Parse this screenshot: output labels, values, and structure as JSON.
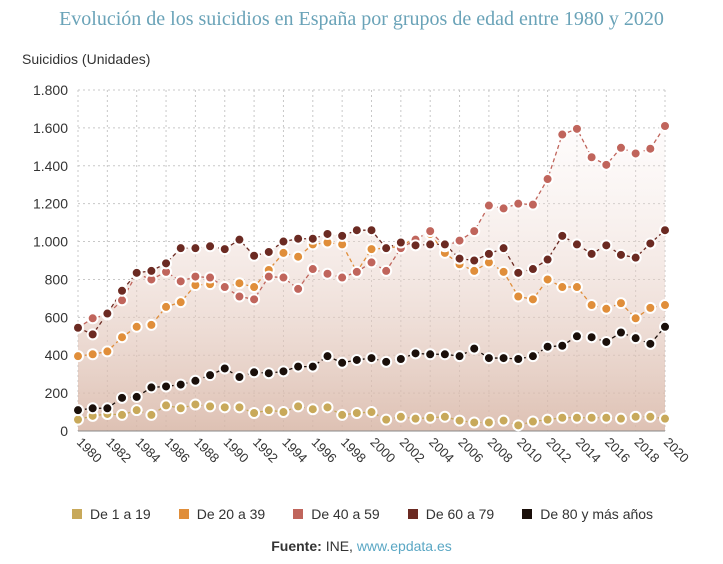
{
  "title": "Evolución de los suicidios en España por grupos de edad entre 1980 y 2020",
  "source": {
    "label": "Fuente:",
    "text": "INE,",
    "link": "www.epdata.es"
  },
  "chart_data": {
    "type": "line",
    "title": "Evolución de los suicidios en España por grupos de edad entre 1980 y 2020",
    "ylabel": "Suicidios (Unidades)",
    "xlabel": "",
    "ylim": [
      0,
      1800
    ],
    "yticks": [
      0,
      200,
      400,
      600,
      800,
      1000,
      1200,
      1400,
      1600,
      1800
    ],
    "ytick_labels": [
      "0",
      "200",
      "400",
      "600",
      "800",
      "1.000",
      "1.200",
      "1.400",
      "1.600",
      "1.800"
    ],
    "xticks": [
      1980,
      1982,
      1984,
      1986,
      1988,
      1990,
      1992,
      1994,
      1996,
      1998,
      2000,
      2002,
      2004,
      2006,
      2008,
      2010,
      2012,
      2014,
      2016,
      2018,
      2020
    ],
    "x": [
      1980,
      1981,
      1982,
      1983,
      1984,
      1985,
      1986,
      1987,
      1988,
      1989,
      1990,
      1991,
      1992,
      1993,
      1994,
      1995,
      1996,
      1997,
      1998,
      1999,
      2000,
      2001,
      2002,
      2003,
      2004,
      2005,
      2006,
      2007,
      2008,
      2009,
      2010,
      2011,
      2012,
      2013,
      2014,
      2015,
      2016,
      2017,
      2018,
      2019,
      2020
    ],
    "grid": true,
    "legend_position": "bottom",
    "series": [
      {
        "name": "De 1 a 19",
        "color": "#c8a95a",
        "values": [
          60,
          80,
          90,
          85,
          110,
          85,
          135,
          120,
          140,
          130,
          125,
          125,
          95,
          110,
          100,
          130,
          115,
          125,
          85,
          95,
          100,
          60,
          75,
          65,
          70,
          75,
          55,
          45,
          45,
          55,
          30,
          50,
          60,
          70,
          70,
          70,
          70,
          65,
          75,
          75,
          65
        ]
      },
      {
        "name": "De 20 a 39",
        "color": "#e08e3a",
        "values": [
          395,
          405,
          420,
          495,
          550,
          560,
          655,
          680,
          770,
          775,
          760,
          780,
          760,
          850,
          940,
          920,
          985,
          995,
          985,
          840,
          960,
          965,
          975,
          1020,
          1040,
          940,
          880,
          845,
          890,
          840,
          710,
          695,
          800,
          760,
          760,
          665,
          645,
          675,
          595,
          650,
          665
        ]
      },
      {
        "name": "De 40 a 59",
        "color": "#c0655c",
        "values": [
          545,
          595,
          615,
          690,
          830,
          800,
          840,
          790,
          815,
          810,
          760,
          710,
          695,
          815,
          810,
          750,
          855,
          830,
          810,
          840,
          890,
          845,
          965,
          1010,
          1055,
          975,
          1005,
          1055,
          1190,
          1175,
          1200,
          1195,
          1330,
          1565,
          1595,
          1445,
          1405,
          1495,
          1465,
          1490,
          1610
        ]
      },
      {
        "name": "De 60 a 79",
        "color": "#6b2a22",
        "values": [
          545,
          510,
          620,
          740,
          835,
          845,
          885,
          965,
          965,
          975,
          960,
          1010,
          925,
          945,
          1000,
          1015,
          1015,
          1040,
          1030,
          1060,
          1060,
          965,
          995,
          980,
          985,
          985,
          910,
          900,
          935,
          965,
          835,
          855,
          905,
          1030,
          985,
          935,
          980,
          930,
          915,
          990,
          1060
        ]
      },
      {
        "name": "De 80 y más años",
        "color": "#1a0f0a",
        "values": [
          110,
          120,
          120,
          175,
          180,
          230,
          235,
          245,
          265,
          295,
          330,
          285,
          310,
          305,
          315,
          340,
          340,
          395,
          360,
          375,
          385,
          365,
          380,
          410,
          405,
          405,
          395,
          435,
          385,
          385,
          380,
          395,
          445,
          450,
          500,
          495,
          470,
          520,
          490,
          460,
          550
        ]
      }
    ]
  }
}
